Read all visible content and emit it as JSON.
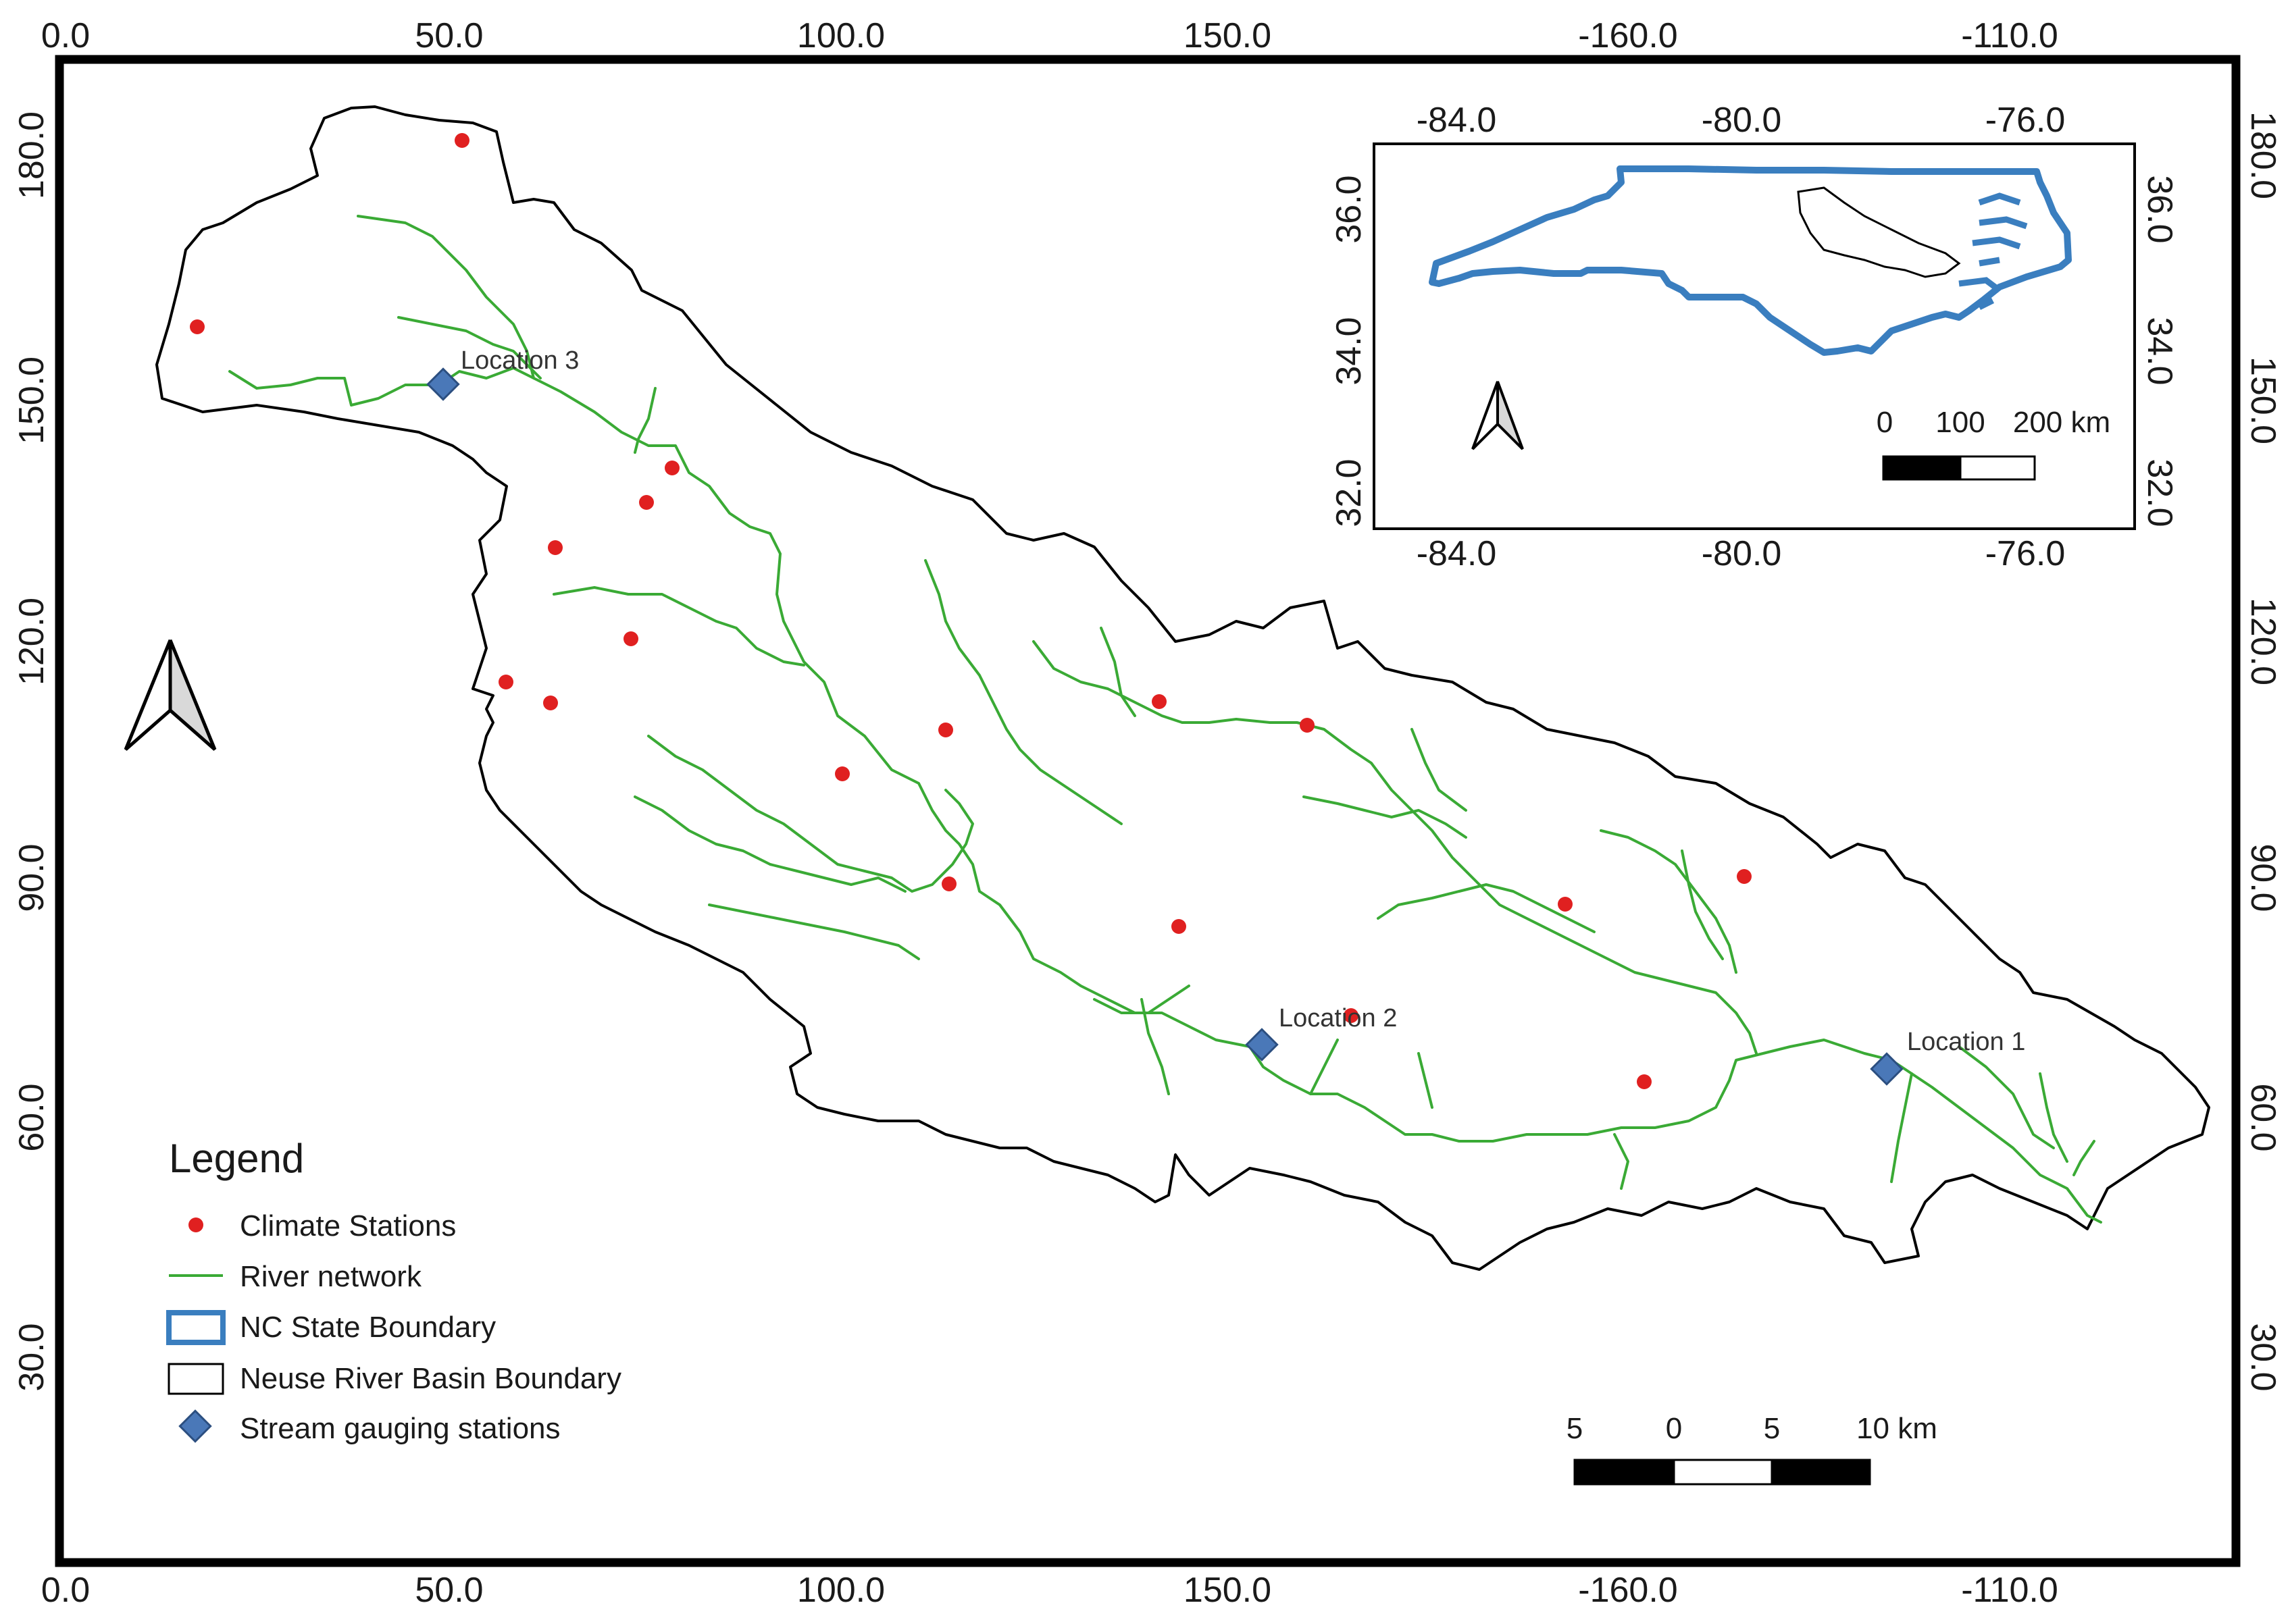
{
  "map": {
    "frame_ticks": {
      "top": [
        "0.0",
        "50.0",
        "100.0",
        "150.0",
        "-160.0",
        "-110.0"
      ],
      "bottom": [
        "0.0",
        "50.0",
        "100.0",
        "150.0",
        "-160.0",
        "-110.0"
      ],
      "left": [
        "180.0",
        "150.0",
        "120.0",
        "90.0",
        "60.0",
        "30.0"
      ],
      "right": [
        "180.0",
        "150.0",
        "120.0",
        "90.0",
        "60.0",
        "30.0"
      ]
    },
    "inset": {
      "x_ticks": [
        "-84.0",
        "-80.0",
        "-76.0"
      ],
      "y_ticks": [
        "36.0",
        "34.0",
        "32.0"
      ],
      "scale_labels": [
        "0",
        "100",
        "200 km"
      ]
    },
    "locations": [
      "Location 3",
      "Location 2",
      "Location 1"
    ],
    "legend": {
      "title": "Legend",
      "items": [
        "Climate Stations",
        "River network",
        "NC State Boundary",
        "Neuse River Basin Boundary",
        "Stream gauging stations"
      ]
    },
    "scale_bar": {
      "labels": [
        "5",
        "0",
        "5",
        "10 km"
      ]
    },
    "colors": {
      "climate_station": "#e02020",
      "river": "#3aaa35",
      "nc_boundary": "#3a7ebf",
      "basin_boundary": "#000000",
      "gauge": "#4a78b8"
    },
    "icons": [
      "north-arrow-icon"
    ]
  }
}
